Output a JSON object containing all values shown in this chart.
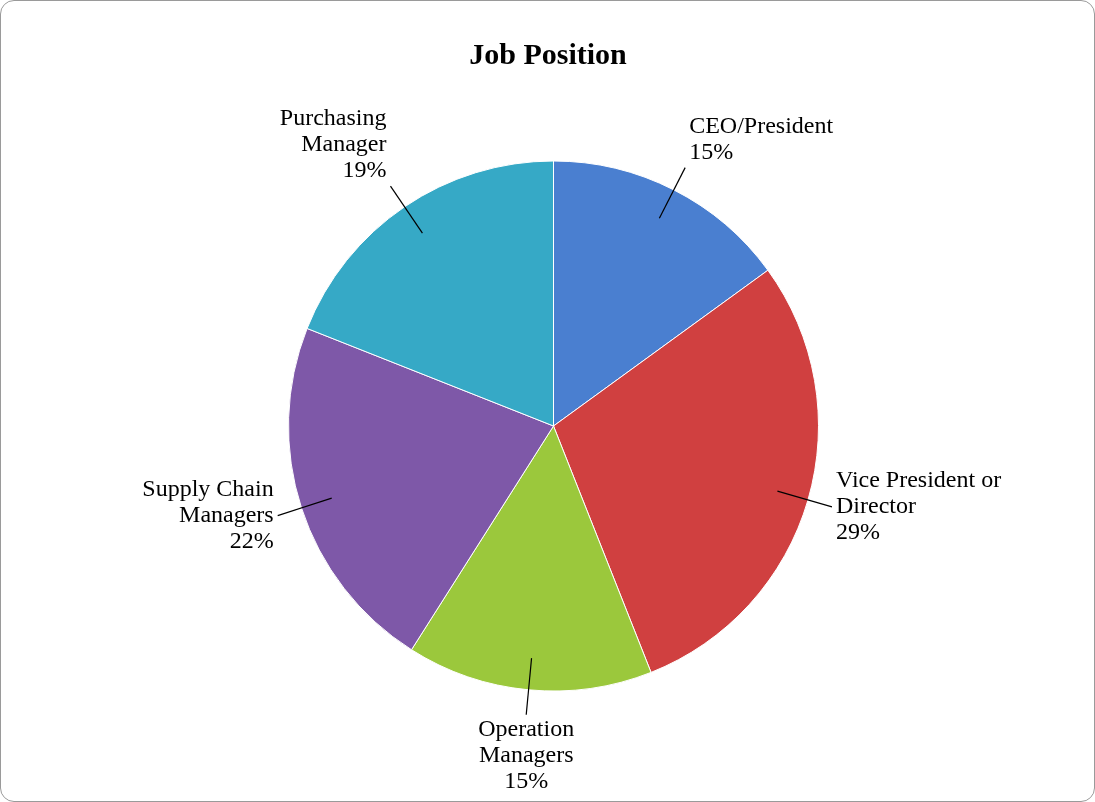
{
  "chart_data": {
    "type": "pie",
    "title": "Job Position",
    "categories": [
      "CEO/President",
      "Vice President or Director",
      "Operation Managers",
      "Supply Chain Managers",
      "Purchasing Manager"
    ],
    "values": [
      15,
      29,
      15,
      22,
      19
    ],
    "value_labels": [
      "15%",
      "29%",
      "15%",
      "22%",
      "19%"
    ],
    "colors": [
      "#4a7fd0",
      "#d04040",
      "#9bc83c",
      "#7e58a8",
      "#36a9c6"
    ],
    "legend": false
  }
}
